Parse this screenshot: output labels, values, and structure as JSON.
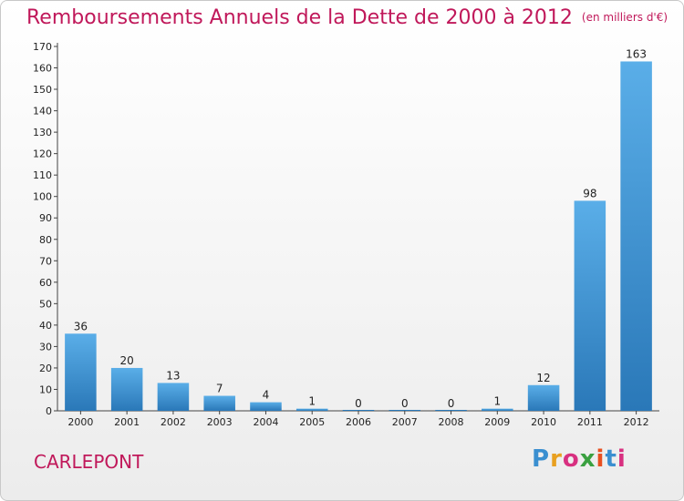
{
  "title": "Remboursements Annuels de la Dette de 2000 à 2012",
  "title_unit": "(en milliers d'€)",
  "commune": "CARLEPONT",
  "logo": {
    "text": "Proxiti",
    "colors": [
      "#3a8fd0",
      "#e8a020",
      "#d83080",
      "#3aa040",
      "#e85020",
      "#3a8fd0",
      "#d83080"
    ]
  },
  "colors": {
    "title": "#c0185a",
    "bar_light": "#5aaee8",
    "bar_dark": "#2a78b8"
  },
  "chart_data": {
    "type": "bar",
    "title": "Remboursements Annuels de la Dette de 2000 à 2012",
    "categories": [
      "2000",
      "2001",
      "2002",
      "2003",
      "2004",
      "2005",
      "2006",
      "2007",
      "2008",
      "2009",
      "2010",
      "2011",
      "2012"
    ],
    "values": [
      36,
      20,
      13,
      7,
      4,
      1,
      0,
      0,
      0,
      1,
      12,
      98,
      163
    ],
    "ylim": [
      0,
      170
    ],
    "yticks": [
      0,
      10,
      20,
      30,
      40,
      50,
      60,
      70,
      80,
      90,
      100,
      110,
      120,
      130,
      140,
      150,
      160,
      170
    ],
    "grid": false,
    "data_labels": true
  }
}
